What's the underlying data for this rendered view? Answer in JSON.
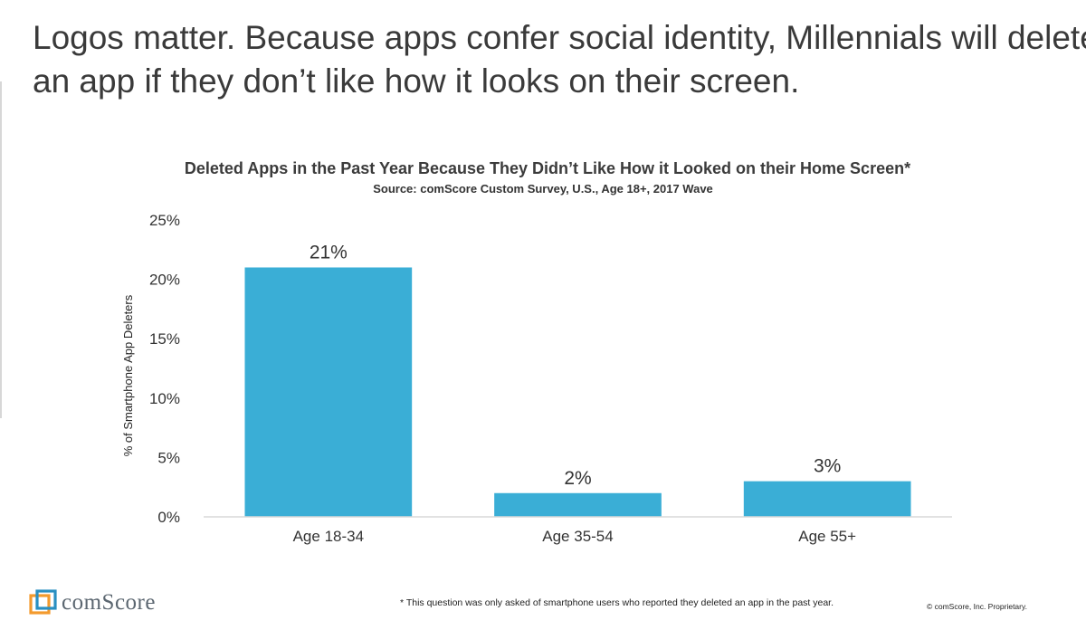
{
  "slide": {
    "title_lines": [
      "Logos matter. Because apps confer social identity, Millennials will delete",
      "an app if they don’t like how it looks on their screen."
    ]
  },
  "chart_data": {
    "type": "bar",
    "title": "Deleted Apps in the Past Year Because They Didn’t Like How it Looked on their Home Screen*",
    "subtitle": "Source: comScore Custom Survey, U.S., Age 18+, 2017 Wave",
    "xlabel": "",
    "ylabel": "% of Smartphone App Deleters",
    "categories": [
      "Age 18-34",
      "Age 35-54",
      "Age 55+"
    ],
    "values": [
      21,
      2,
      3
    ],
    "data_labels": [
      "21%",
      "2%",
      "3%"
    ],
    "ylim": [
      0,
      25
    ],
    "yticks": [
      0,
      5,
      10,
      15,
      20,
      25
    ],
    "ytick_labels": [
      "0%",
      "5%",
      "10%",
      "15%",
      "20%",
      "25%"
    ],
    "grid": false,
    "legend": "none",
    "colors": {
      "bar": "#3aaed6",
      "axis": "#d9d9d9",
      "text": "#333333"
    }
  },
  "footer": {
    "logo_text": "comScore",
    "footnote": "* This question was only asked of smartphone users who reported they deleted an app in the past year.",
    "copyright": "© comScore, Inc. Proprietary."
  },
  "colors": {
    "logo_orange": "#f39a2d",
    "logo_blue": "#2a8fc1"
  }
}
